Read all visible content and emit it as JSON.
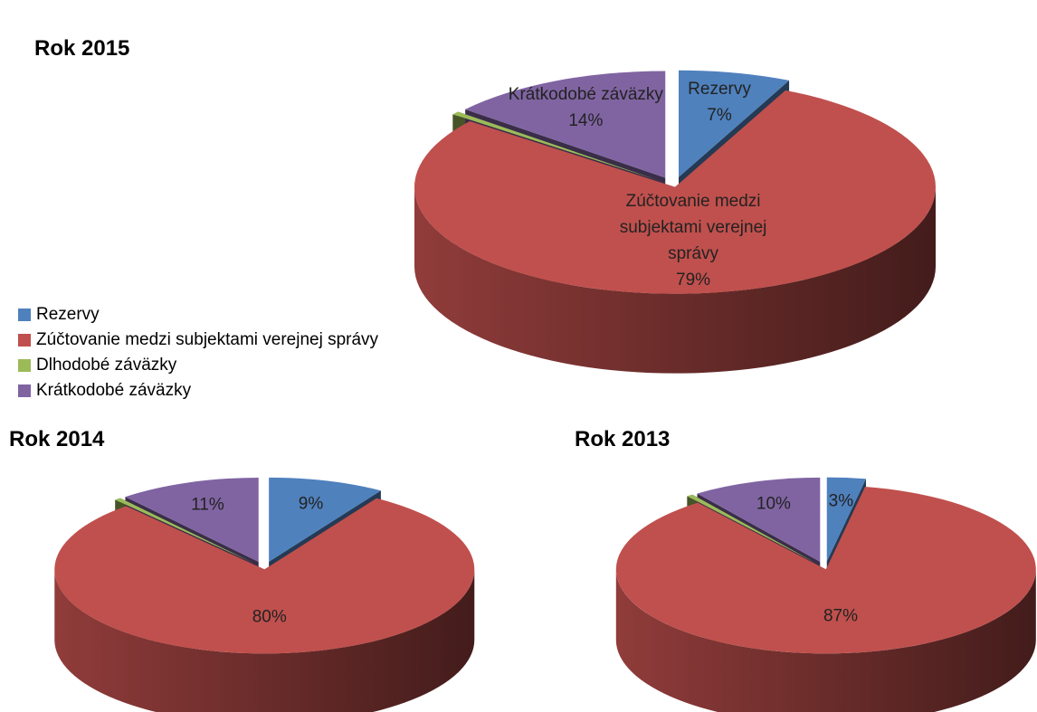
{
  "chart_data": [
    {
      "type": "pie",
      "title": "Rok 2015",
      "categories": [
        "Rezervy",
        "Zúčtovanie medzi subjektami verejnej správy",
        "Dlhodobé záväzky",
        "Krátkodobé záväzky"
      ],
      "values": [
        7,
        79,
        0.5,
        14
      ],
      "value_labels": [
        "7%",
        "79%",
        null,
        "14%"
      ],
      "colors": [
        "#4f81bd",
        "#c0504d",
        "#9bbb59",
        "#8064a2"
      ],
      "show_category_labels": true,
      "legend": true
    },
    {
      "type": "pie",
      "title": "Rok 2014",
      "categories": [
        "Rezervy",
        "Zúčtovanie medzi subjektami verejnej správy",
        "Dlhodobé záväzky",
        "Krátkodobé záväzky"
      ],
      "values": [
        9,
        80,
        0.5,
        11
      ],
      "value_labels": [
        "9%",
        "80%",
        null,
        "11%"
      ],
      "colors": [
        "#4f81bd",
        "#c0504d",
        "#9bbb59",
        "#8064a2"
      ],
      "show_category_labels": false,
      "legend": false
    },
    {
      "type": "pie",
      "title": "Rok 2013",
      "categories": [
        "Rezervy",
        "Zúčtovanie medzi subjektami verejnej správy",
        "Dlhodobé záväzky",
        "Krátkodobé záväzky"
      ],
      "values": [
        3,
        87,
        0.5,
        10
      ],
      "value_labels": [
        "3%",
        "87%",
        null,
        "10%"
      ],
      "colors": [
        "#4f81bd",
        "#c0504d",
        "#9bbb59",
        "#8064a2"
      ],
      "show_category_labels": false,
      "legend": false
    }
  ]
}
